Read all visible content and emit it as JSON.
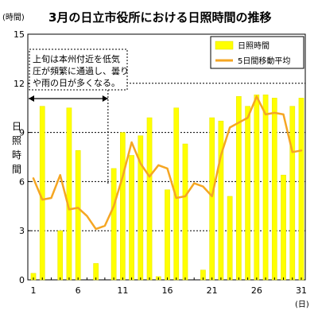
{
  "chart_data": {
    "type": "bar",
    "title": "3月の日立市役所における日照時間の推移",
    "y_unit": "(時間)",
    "x_unit": "(日)",
    "ylabel_chars": [
      "日",
      "照",
      "時",
      "間"
    ],
    "ylim": [
      0,
      15
    ],
    "yticks": [
      0,
      3,
      6,
      9,
      12,
      15
    ],
    "xlim": [
      1,
      31
    ],
    "xticks": [
      1,
      6,
      11,
      16,
      21,
      26,
      31
    ],
    "grid": "y-dashed",
    "legend_position": "top-right",
    "annotation": {
      "lines": [
        "上旬は本州付近を低気",
        "圧が頻繁に通過し、曇り",
        "や雨の日が多くなる。"
      ],
      "range": [
        1,
        9
      ]
    },
    "series": [
      {
        "name": "日照時間",
        "kind": "bar",
        "color": "#ffff00",
        "x": [
          1,
          2,
          3,
          4,
          5,
          6,
          7,
          8,
          9,
          10,
          11,
          12,
          13,
          14,
          15,
          16,
          17,
          18,
          19,
          20,
          21,
          22,
          23,
          24,
          25,
          26,
          27,
          28,
          29,
          30,
          31
        ],
        "values": [
          0.4,
          10.6,
          0,
          3.0,
          10.5,
          7.9,
          0,
          1.0,
          0,
          6.8,
          9.0,
          7.6,
          8.8,
          9.9,
          0.2,
          5.5,
          10.5,
          8.3,
          0,
          0.6,
          9.9,
          9.7,
          5.1,
          11.2,
          10.6,
          11.3,
          11.3,
          11.1,
          6.4,
          10.6,
          11.1
        ]
      },
      {
        "name": "5日間移動平均",
        "kind": "line",
        "color": "#f5a623",
        "x": [
          1,
          2,
          3,
          4,
          5,
          6,
          7,
          8,
          9,
          10,
          11,
          12,
          13,
          14,
          15,
          16,
          17,
          18,
          19,
          20,
          21,
          22,
          23,
          24,
          25,
          26,
          27,
          28,
          29,
          30,
          31
        ],
        "values": [
          6.2,
          4.9,
          5.0,
          6.4,
          4.3,
          4.4,
          3.9,
          3.1,
          3.3,
          4.5,
          6.3,
          8.4,
          7.1,
          6.3,
          7.0,
          6.8,
          5.0,
          5.1,
          5.9,
          5.7,
          5.1,
          7.6,
          9.3,
          9.6,
          9.9,
          11.2,
          10.1,
          10.2,
          10.1,
          7.8,
          7.9
        ]
      }
    ]
  }
}
